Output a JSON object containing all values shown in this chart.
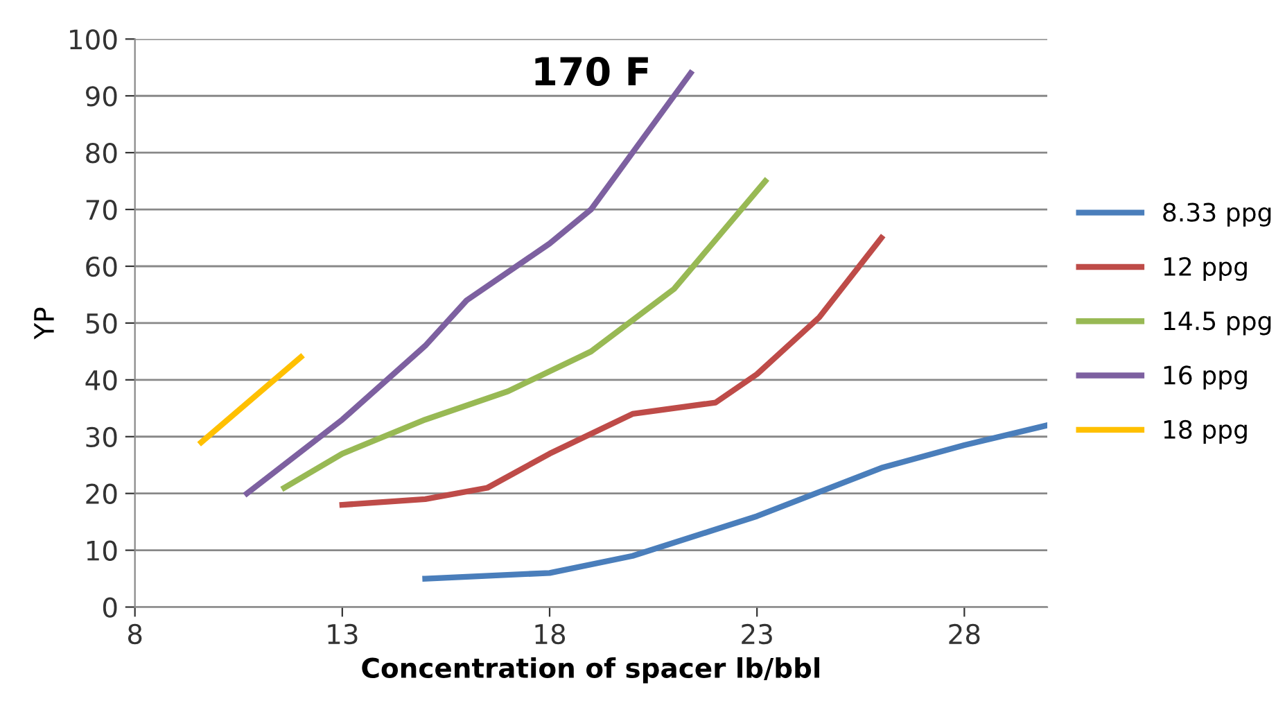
{
  "chart_data": {
    "type": "line",
    "title": "170 F",
    "xlabel": "Concentration of spacer lb/bbl",
    "ylabel": "YP",
    "xlim": [
      8,
      30
    ],
    "xticks": [
      8,
      13,
      18,
      23,
      28
    ],
    "ylim": [
      0,
      100
    ],
    "yticks": [
      0,
      10,
      20,
      30,
      40,
      50,
      60,
      70,
      80,
      90,
      100
    ],
    "grid": "y",
    "legend": "right",
    "marker": "none",
    "line_style": "solid",
    "series": [
      {
        "name": "8.33 ppg",
        "color": "#4a7ebb",
        "x": [
          15,
          18,
          20,
          23,
          26,
          28,
          30
        ],
        "values": [
          5,
          6,
          9,
          16,
          24.5,
          28.5,
          32
        ]
      },
      {
        "name": "12 ppg",
        "color": "#be4b48",
        "x": [
          13,
          15,
          16.5,
          18,
          20,
          22,
          23,
          24.5,
          26
        ],
        "values": [
          18,
          19,
          21,
          27,
          34,
          36,
          41,
          51,
          65
        ]
      },
      {
        "name": "14.5 ppg",
        "color": "#98b954",
        "x": [
          11.6,
          13,
          15,
          17,
          19,
          21,
          23.2
        ],
        "values": [
          21,
          27,
          33,
          38,
          45,
          56,
          75
        ]
      },
      {
        "name": "16 ppg",
        "color": "#7d60a0",
        "x": [
          10.7,
          13,
          15,
          16,
          18,
          19,
          20,
          21.4
        ],
        "values": [
          20,
          33,
          46,
          54,
          64,
          70,
          80,
          94
        ]
      },
      {
        "name": "18 ppg",
        "color": "#ffc000",
        "x": [
          9.6,
          12
        ],
        "values": [
          29,
          44
        ]
      }
    ]
  }
}
